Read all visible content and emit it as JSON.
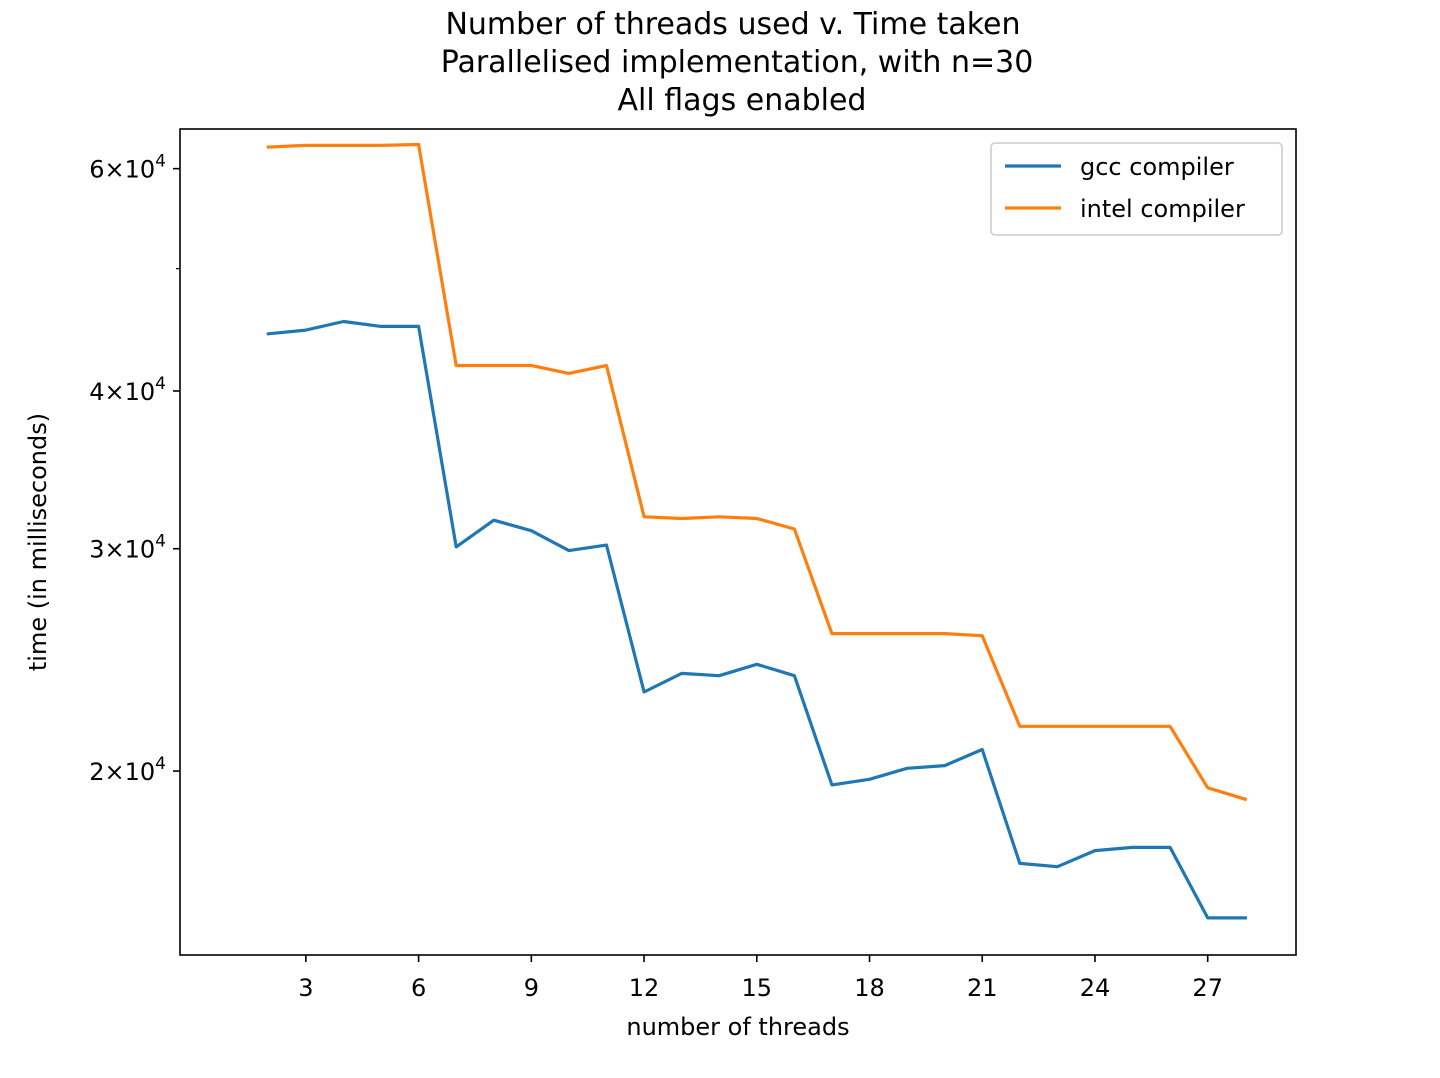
{
  "chart_data": {
    "type": "line",
    "title_lines": [
      "Number of threads used v. Time taken",
      "Parallelised implementation, with n=30",
      "All flags enabled"
    ],
    "xlabel": "number of threads",
    "ylabel": "time (in milliseconds)",
    "x": [
      2,
      3,
      4,
      5,
      6,
      7,
      8,
      9,
      10,
      11,
      12,
      13,
      14,
      15,
      16,
      17,
      18,
      19,
      20,
      21,
      22,
      23,
      24,
      25,
      26,
      27,
      28
    ],
    "xlim": [
      -0.35,
      29.35
    ],
    "xticks": [
      3,
      6,
      9,
      12,
      15,
      18,
      21,
      24,
      27
    ],
    "xtick_labels": [
      "3",
      "6",
      "9",
      "12",
      "15",
      "18",
      "21",
      "24",
      "27"
    ],
    "yscale": "log",
    "ylim": [
      14300,
      64500
    ],
    "yticks": [
      {
        "value": 20000,
        "mantissa": "2",
        "base": "10",
        "exp": "4"
      },
      {
        "value": 30000,
        "mantissa": "3",
        "base": "10",
        "exp": "4"
      },
      {
        "value": 40000,
        "mantissa": "4",
        "base": "10",
        "exp": "4"
      },
      {
        "value": 60000,
        "mantissa": "6",
        "base": "10",
        "exp": "4"
      }
    ],
    "minor_yticks": [
      50000
    ],
    "grid": false,
    "legend_position": "upper right",
    "series": [
      {
        "name": "gcc compiler",
        "color": "#1f77b4",
        "values": [
          44400,
          44700,
          45400,
          45000,
          45000,
          30100,
          31600,
          31000,
          29900,
          30200,
          23100,
          23900,
          23800,
          24300,
          23800,
          19500,
          19700,
          20100,
          20200,
          20800,
          16900,
          16800,
          17300,
          17400,
          17400,
          15300,
          15300
        ]
      },
      {
        "name": "intel compiler",
        "color": "#ff7f0e",
        "values": [
          62400,
          62600,
          62600,
          62600,
          62700,
          41900,
          41900,
          41900,
          41300,
          41900,
          31800,
          31700,
          31800,
          31700,
          31100,
          25700,
          25700,
          25700,
          25700,
          25600,
          21700,
          21700,
          21700,
          21700,
          21700,
          19400,
          19000
        ]
      }
    ]
  }
}
